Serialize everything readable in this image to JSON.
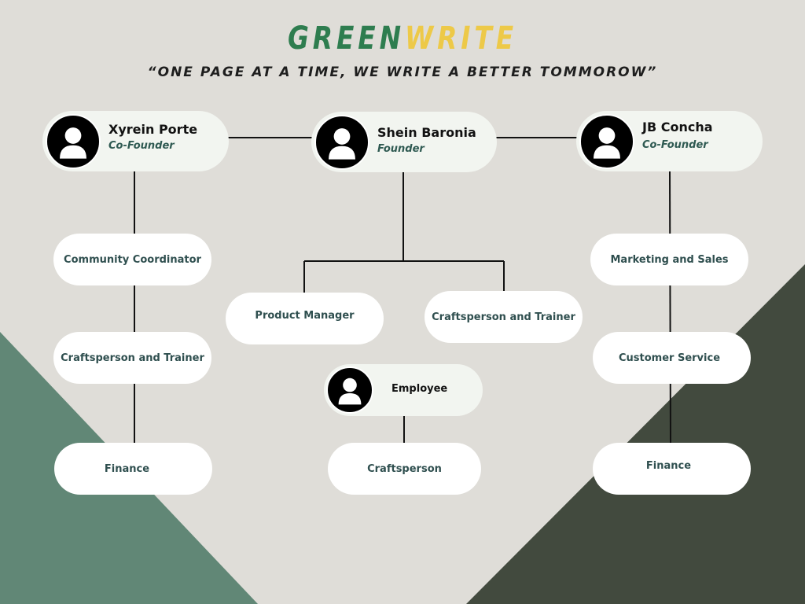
{
  "brand": {
    "part1": "GREEN",
    "part2": "WRITE"
  },
  "tagline": "“ONE PAGE AT A TIME, WE WRITE A BETTER TOMMOROW”",
  "colors": {
    "background": "#dfddd8",
    "green_accent": "#2e7d4f",
    "yellow_accent": "#edc948",
    "triangle_left": "#618776",
    "triangle_right": "#424a3e",
    "card": "#ffffff",
    "leader_card": "#f2f5f0"
  },
  "leaders": {
    "left": {
      "name": "Xyrein Porte",
      "title": "Co-Founder",
      "icon": "user-avatar-icon"
    },
    "center": {
      "name": "Shein Baronia",
      "title": "Founder",
      "icon": "user-avatar-icon"
    },
    "right": {
      "name": "JB Concha",
      "title": "Co-Founder",
      "icon": "user-avatar-icon"
    }
  },
  "roles": {
    "community_coordinator": "Community Coordinator",
    "left_craftsperson_trainer": "Craftsperson and Trainer",
    "left_finance": "Finance",
    "product_manager": "Product Manager",
    "center_craftsperson_trainer": "Craftsperson and Trainer",
    "employee": "Employee",
    "craftsperson": "Craftsperson",
    "marketing_sales": "Marketing and Sales",
    "customer_service": "Customer Service",
    "right_finance": "Finance"
  }
}
